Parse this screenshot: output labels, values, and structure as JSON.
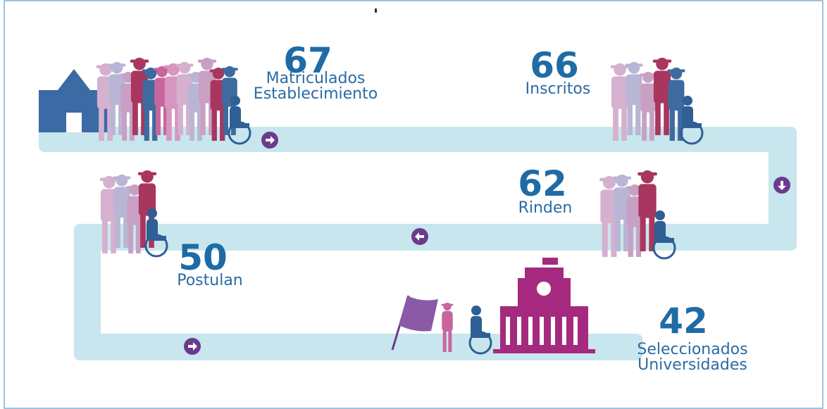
{
  "stages": [
    {
      "number": "67",
      "label": [
        "Matriculados",
        "Establecimiento"
      ]
    },
    {
      "number": "66",
      "label": [
        "Inscritos"
      ]
    },
    {
      "number": "62",
      "label": [
        "Rinden"
      ]
    },
    {
      "number": "50",
      "label": [
        "Postulan"
      ]
    },
    {
      "number": "42",
      "label": [
        "Seleccionados",
        "Universidades"
      ]
    }
  ]
}
